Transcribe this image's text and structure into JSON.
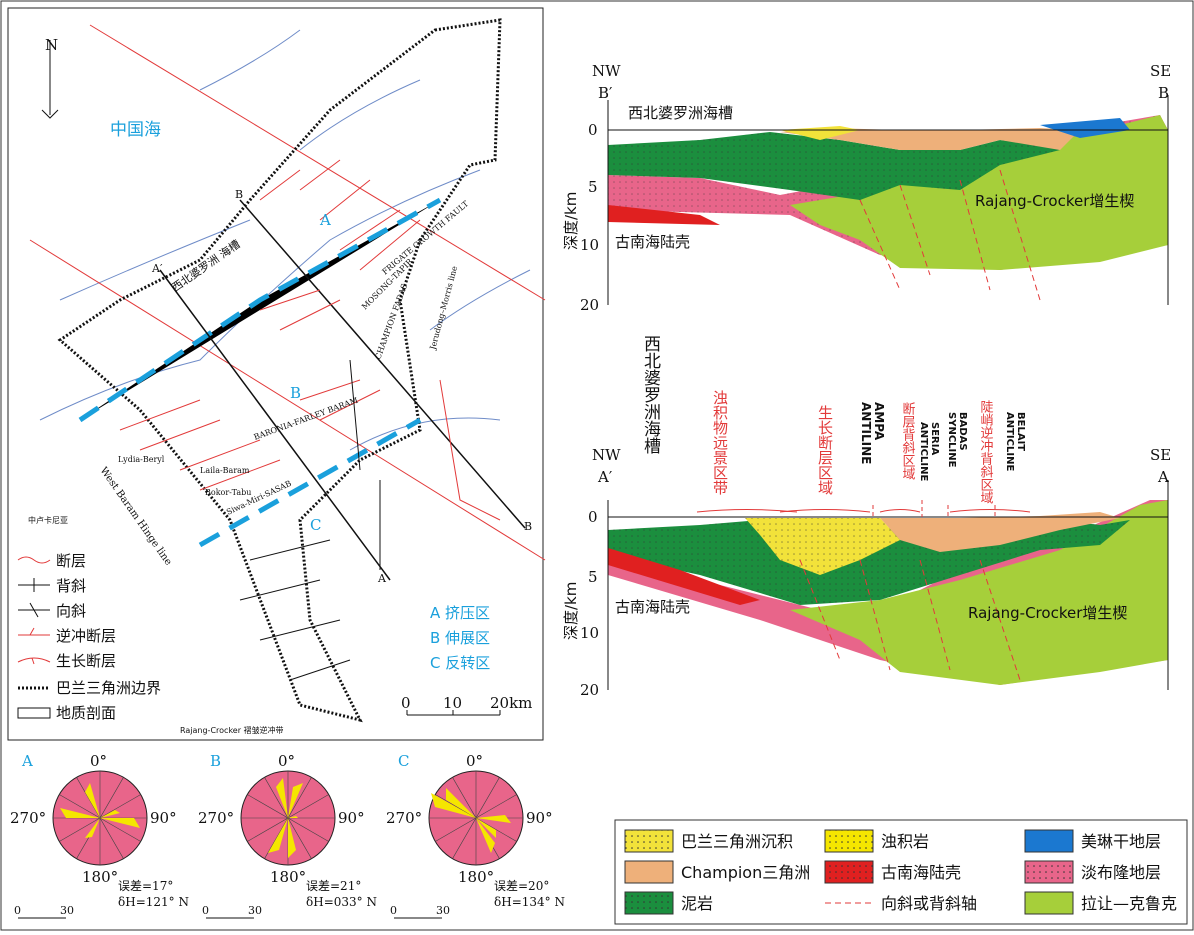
{
  "map": {
    "north": "N",
    "sea": "中国海",
    "zones": [
      "A",
      "B",
      "C"
    ],
    "section_ends": [
      "B",
      "A′",
      "B",
      "A"
    ],
    "places": [
      "西北婆罗洲 海槽",
      "FRIGATE GROWTH FAULT",
      "MOSONG-TAPIR",
      "CHAMPION FADAS",
      "Jerudong–Morris line",
      "BARONIA-FARLEY BARAM",
      "Lydia-Beryl",
      "Laila-Baram",
      "Bokor-Tabu",
      "Siwa-Miri-SASAB",
      "West Baram Hinge line",
      "中卢卡尼亚",
      "Rajang-Crocker 褶皱逆冲带"
    ],
    "legend": [
      "断层",
      "背斜",
      "向斜",
      "逆冲断层",
      "生长断层",
      "巴兰三角洲边界",
      "地质剖面"
    ],
    "zone_legend": [
      "A 挤压区",
      "B 伸展区",
      "C 反转区"
    ],
    "scale": [
      "0",
      "10",
      "20km"
    ]
  },
  "roses": [
    {
      "label": "A",
      "error": "误差=17°",
      "direction": "δH=121° N"
    },
    {
      "label": "B",
      "error": "误差=21°",
      "direction": "δH=033° N"
    },
    {
      "label": "C",
      "error": "误差=20°",
      "direction": "δH=134° N"
    }
  ],
  "rose_angles": [
    "0°",
    "90°",
    "180°",
    "270°"
  ],
  "rose_scale": [
    "0",
    "30"
  ],
  "section_top": {
    "left": [
      "NW",
      "B′"
    ],
    "right": [
      "SE",
      "B"
    ],
    "trough": "西北婆罗洲海槽",
    "depth_ticks": [
      "0",
      "5",
      "10",
      "20"
    ],
    "depth_label": "深度/km",
    "wedge": "Rajang-Crocker增生楔",
    "crust": "古南海陆壳"
  },
  "section_bottom": {
    "left": [
      "NW",
      "A′"
    ],
    "right": [
      "SE",
      "A"
    ],
    "trough": "西北婆罗洲海槽",
    "zones": [
      "浊积物远景区带",
      "生长断层区域",
      "AMPA",
      "ANTILINE",
      "断层背斜区域",
      "SERIA",
      "ANTICLINE",
      "BADAS",
      "SYNCLINE",
      "BELAIT",
      "ANTICLINE",
      "陡峭逆冲背斜区域"
    ],
    "depth_ticks": [
      "0",
      "5",
      "10",
      "20"
    ],
    "depth_label": "深度/km",
    "wedge": "Rajang-Crocker增生楔",
    "crust": "古南海陆壳"
  },
  "legend": [
    "巴兰三角洲沉积",
    "浊积岩",
    "美琳干地层",
    "Champion三角洲",
    "古南海陆壳",
    "淡布隆地层",
    "泥岩",
    "向斜或背斜轴",
    "拉让—克鲁克"
  ]
}
